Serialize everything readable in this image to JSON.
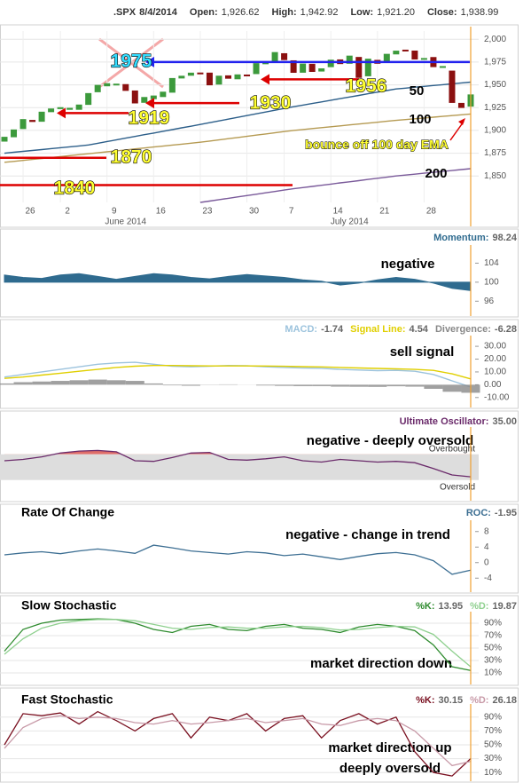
{
  "chart_data": [
    {
      "type": "candlestick",
      "symbol": ".SPX",
      "date": "8/4/2014",
      "ohlc": [
        {
          "name": "Open:",
          "value": 1926.62,
          "label": "1,926.62"
        },
        {
          "name": "High:",
          "value": 1942.92,
          "label": "1,942.92"
        },
        {
          "name": "Low:",
          "value": 1921.2,
          "label": "1,921.20"
        },
        {
          "name": "Close:",
          "value": 1938.99,
          "label": "1,938.99"
        }
      ],
      "categories": [
        null,
        null,
        "26",
        null,
        null,
        null,
        "2",
        null,
        null,
        null,
        null,
        "9",
        null,
        null,
        null,
        null,
        "16",
        null,
        null,
        null,
        null,
        "23",
        null,
        null,
        null,
        null,
        "30",
        null,
        null,
        null,
        "7",
        null,
        null,
        null,
        null,
        "14",
        null,
        null,
        null,
        null,
        "21",
        null,
        null,
        null,
        null,
        "28",
        null,
        null,
        null,
        null,
        null
      ],
      "months": [
        "June 2014",
        "July 2014"
      ],
      "open": [
        1888.2,
        1893.0,
        1902.0,
        1911.0,
        1910.0,
        1920.5,
        1923.9,
        1923.1,
        1923.1,
        1928.5,
        1942.4,
        1948.9,
        1950.3,
        1950.3,
        1943.3,
        1930.8,
        1934.8,
        1937.1,
        1941.9,
        1957.5,
        1960.5,
        1963.0,
        1962.9,
        1950.8,
        1959.9,
        1956.6,
        1960.8,
        1962.3,
        1973.1,
        1975.9,
        1984.2,
        1976.4,
        1963.8,
        1972.6,
        1965.1,
        1969.9,
        1977.4,
        1973.6,
        1980.1,
        1959.9,
        1976.9,
        1976.0,
        1983.9,
        1988.1,
        1987.1,
        1978.3,
        1980.0,
        1969.9,
        1965.1,
        1929.7,
        1926.62
      ],
      "close": [
        1892.49,
        1900.53,
        1911.91,
        1909.78,
        1920.03,
        1923.57,
        1924.97,
        1924.24,
        1927.88,
        1940.46,
        1949.44,
        1951.27,
        1950.79,
        1943.89,
        1930.11,
        1936.16,
        1937.78,
        1941.99,
        1956.98,
        1959.48,
        1962.87,
        1962.61,
        1949.98,
        1959.53,
        1957.22,
        1960.96,
        1960.23,
        1973.32,
        1974.62,
        1985.44,
        1977.65,
        1963.71,
        1972.83,
        1964.68,
        1967.57,
        1977.1,
        1973.28,
        1981.57,
        1958.12,
        1978.22,
        1973.63,
        1983.53,
        1987.01,
        1987.98,
        1978.34,
        1978.91,
        1969.95,
        1970.07,
        1930.67,
        1925.15,
        1938.99
      ],
      "up_color": "#3c9a3c",
      "down_color": "#8b1010",
      "series": [
        {
          "name": "50",
          "color": "#2d5f8a",
          "values": [
            1875,
            1876,
            1877,
            1878,
            1879,
            1880,
            1881,
            1882,
            1883,
            1884,
            1885.9,
            1887.8,
            1889.6,
            1891.5,
            1893.4,
            1895.3,
            1897.1,
            1899,
            1900.9,
            1902.8,
            1904.6,
            1906.5,
            1908.5,
            1910.4,
            1912.4,
            1914.3,
            1916.3,
            1918.2,
            1920.2,
            1922.1,
            1924.1,
            1926,
            1927.8,
            1929.5,
            1931.3,
            1933.1,
            1934.9,
            1936.6,
            1938.4,
            1940.2,
            1942,
            1943.7,
            1945.5,
            1946.4,
            1947.4,
            1948.3,
            1949.3,
            1950.2,
            1951.1,
            1952.1,
            1953
          ]
        },
        {
          "name": "100",
          "color": "#b59a52",
          "values": [
            1865,
            1866,
            1867.1,
            1868.1,
            1869.2,
            1870.2,
            1871.3,
            1872.3,
            1873.4,
            1874.4,
            1875.5,
            1876.5,
            1877.6,
            1878.6,
            1879.7,
            1880.7,
            1881.8,
            1882.8,
            1883.9,
            1884.9,
            1886,
            1887,
            1888.3,
            1889.6,
            1890.9,
            1892.2,
            1893.5,
            1894.8,
            1896.1,
            1897.4,
            1898.7,
            1900,
            1901,
            1902,
            1903,
            1904,
            1905,
            1906,
            1907,
            1908,
            1909,
            1910,
            1911,
            1911.9,
            1912.8,
            1913.6,
            1914.5,
            1915.4,
            1916.3,
            1917.1,
            1918
          ]
        },
        {
          "name": "200",
          "color": "#7a5a9a",
          "values": [
            null,
            null,
            null,
            null,
            null,
            null,
            null,
            null,
            null,
            null,
            null,
            null,
            null,
            null,
            null,
            null,
            null,
            null,
            null,
            null,
            null,
            1821,
            1822.5,
            1824,
            1825.5,
            1827,
            1828.5,
            1830,
            1831.5,
            1833,
            1834.5,
            1836,
            1837.3,
            1838.5,
            1839.8,
            1841.1,
            1842.4,
            1843.6,
            1844.9,
            1846.2,
            1847.5,
            1848.7,
            1850,
            1851,
            1852,
            1853,
            1854,
            1855,
            1856,
            1857,
            1858
          ]
        }
      ],
      "levels": [
        {
          "value": 1975,
          "color": "#2222ee"
        },
        {
          "value": 1956,
          "color": "#dd0000"
        },
        {
          "value": 1930,
          "color": "#dd0000"
        },
        {
          "value": 1919,
          "color": "#dd0000"
        },
        {
          "value": 1870,
          "color": "#dd0000"
        },
        {
          "value": 1840,
          "color": "#dd0000"
        }
      ],
      "annotations": [
        "bounce off 100 day EMA"
      ],
      "ylim": [
        1821,
        2009
      ],
      "yticks": [
        {
          "value": 1850,
          "label": "1,850"
        },
        {
          "value": 1875,
          "label": "1,875"
        },
        {
          "value": 1900,
          "label": "1,900"
        },
        {
          "value": 1925,
          "label": "1,925"
        },
        {
          "value": 1950,
          "label": "1,950"
        },
        {
          "value": 1975,
          "label": "1,975"
        },
        {
          "value": 2000,
          "label": "2,000"
        }
      ],
      "grid": true
    },
    {
      "type": "area",
      "series": [
        {
          "name": "Momentum:",
          "color": "#2f6b8f",
          "values": [
            101.5,
            101,
            100.8,
            101.5,
            101.8,
            101.2,
            100.6,
            101.2,
            101.8,
            101.5,
            101,
            100.7,
            101.2,
            101.6,
            101.3,
            101,
            100.5,
            100.2,
            99.4,
            99.8,
            100.5,
            101,
            100.6,
            99.8,
            98.7,
            98.24
          ]
        }
      ],
      "baseline": 100,
      "ylim": [
        94,
        108
      ],
      "yticks": [
        96,
        100,
        104
      ],
      "notes": [
        "negative"
      ]
    },
    {
      "type": "macd",
      "series": [
        {
          "name": "MACD:",
          "color": "#9cc3dd",
          "values": [
            6,
            8,
            10,
            12,
            14,
            16,
            17,
            17.5,
            16,
            14.5,
            14,
            14.5,
            15,
            14.8,
            14,
            13.5,
            13,
            12.8,
            12,
            11.5,
            11,
            11.2,
            10.5,
            8,
            3,
            -1.74
          ]
        },
        {
          "name": "Signal Line:",
          "color": "#e0cf00",
          "values": [
            5,
            6,
            7.5,
            9,
            10.5,
            12,
            13.5,
            14.5,
            15,
            15,
            14.8,
            14.7,
            14.7,
            14.7,
            14.6,
            14.4,
            14.1,
            13.9,
            13.5,
            13.1,
            12.7,
            12.4,
            12,
            11.2,
            8.5,
            4.54
          ]
        },
        {
          "name": "Divergence:",
          "color": "#888888",
          "bars": true,
          "values": [
            1,
            2,
            2.5,
            3,
            3.5,
            4,
            3.5,
            3,
            1,
            -0.5,
            -0.8,
            -0.2,
            0.3,
            0.1,
            -0.6,
            -0.9,
            -1.1,
            -1.1,
            -1.5,
            -1.6,
            -1.7,
            -1.2,
            -1.5,
            -3.2,
            -5.5,
            -6.28
          ]
        }
      ],
      "ylim": [
        -15,
        37
      ],
      "yticks": [
        {
          "value": 30,
          "label": "30.00"
        },
        {
          "value": 20,
          "label": "20.00"
        },
        {
          "value": 10,
          "label": "10.00"
        },
        {
          "value": 0,
          "label": "0.00"
        },
        {
          "value": -10,
          "label": "-10.00"
        }
      ],
      "notes": [
        "sell signal"
      ]
    },
    {
      "type": "oscillator",
      "series": [
        {
          "name": "Ultimate Oscillator:",
          "color": "#6a2a6a",
          "values": [
            60,
            62,
            66,
            72,
            75,
            76,
            74,
            60,
            59,
            65,
            72,
            73,
            62,
            61,
            63,
            66,
            60,
            58,
            62,
            60,
            58,
            59,
            57,
            48,
            38,
            35
          ]
        }
      ],
      "reading": {
        "value": 35,
        "label": "35.00"
      },
      "bands": [
        {
          "value": 70,
          "label": "Overbought"
        },
        {
          "value": 30,
          "label": "Oversold"
        }
      ],
      "fill_color": "#d9534f",
      "ylim": [
        20,
        100
      ],
      "notes": [
        "negative - deeply oversold"
      ]
    },
    {
      "type": "line",
      "title": "Rate Of Change",
      "series": [
        {
          "name": "ROC:",
          "color": "#3d6f93",
          "values": [
            2,
            2.5,
            2.8,
            2.3,
            3,
            3.5,
            3,
            2.4,
            4.5,
            3.8,
            3,
            2.6,
            2.2,
            2.8,
            2.5,
            1.8,
            2.2,
            1.5,
            0.8,
            1.6,
            2.3,
            2.6,
            2,
            0.5,
            -3,
            -1.95
          ]
        }
      ],
      "ylim": [
        -6,
        10
      ],
      "yticks": [
        8,
        4,
        0,
        -4
      ],
      "notes": [
        "negative - change in trend"
      ]
    },
    {
      "type": "line",
      "title": "Slow Stochastic",
      "series": [
        {
          "name": "%K:",
          "color": "#2e8b2e",
          "values": [
            45,
            80,
            90,
            95,
            96,
            97,
            96,
            90,
            80,
            75,
            85,
            88,
            80,
            78,
            85,
            88,
            82,
            80,
            75,
            84,
            88,
            85,
            78,
            55,
            20,
            13.95
          ]
        },
        {
          "name": "%D:",
          "color": "#8fd08f",
          "values": [
            40,
            65,
            82,
            90,
            94,
            96,
            96,
            94,
            88,
            82,
            80,
            83,
            84,
            82,
            82,
            84,
            85,
            83,
            79,
            80,
            83,
            85,
            84,
            72,
            45,
            19.87
          ]
        }
      ],
      "ylim": [
        0,
        100
      ],
      "yticks": [
        {
          "value": 90,
          "label": "90%"
        },
        {
          "value": 70,
          "label": "70%"
        },
        {
          "value": 50,
          "label": "50%"
        },
        {
          "value": 30,
          "label": "30%"
        },
        {
          "value": 10,
          "label": "10%"
        }
      ],
      "grid": true,
      "notes": [
        "market direction down"
      ]
    },
    {
      "type": "line",
      "title": "Fast Stochastic",
      "series": [
        {
          "name": "%K:",
          "color": "#7a1020",
          "values": [
            50,
            95,
            92,
            96,
            80,
            98,
            85,
            70,
            88,
            95,
            60,
            90,
            85,
            95,
            70,
            88,
            92,
            60,
            85,
            95,
            80,
            90,
            40,
            10,
            5,
            30.15
          ]
        },
        {
          "name": "%D:",
          "color": "#c89aa8",
          "values": [
            45,
            75,
            88,
            92,
            88,
            90,
            88,
            82,
            80,
            85,
            80,
            82,
            85,
            88,
            82,
            85,
            88,
            80,
            78,
            85,
            88,
            85,
            70,
            45,
            20,
            26.18
          ]
        }
      ],
      "ylim": [
        0,
        100
      ],
      "yticks": [
        {
          "value": 90,
          "label": "90%"
        },
        {
          "value": 70,
          "label": "70%"
        },
        {
          "value": 50,
          "label": "50%"
        },
        {
          "value": 30,
          "label": "30%"
        },
        {
          "value": 10,
          "label": "10%"
        }
      ],
      "grid": true,
      "notes": [
        "market direction up",
        "deeply oversold"
      ]
    }
  ]
}
